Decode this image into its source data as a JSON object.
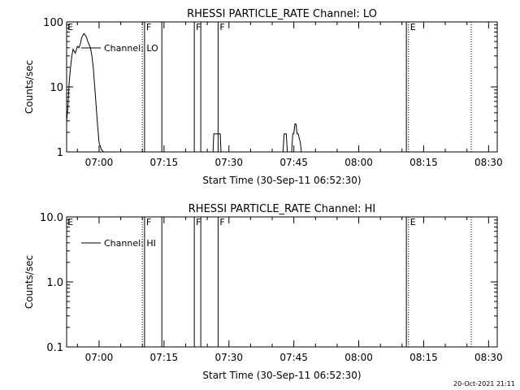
{
  "footer_stamp": "20-Oct-2021 21:11",
  "chart_data": [
    {
      "type": "line",
      "title": "RHESSI PARTICLE_RATE Channel: LO",
      "xlabel": "Start Time (30-Sep-11 06:52:30)",
      "ylabel": "Counts/sec",
      "yscale": "log",
      "ylim": [
        1,
        100
      ],
      "xlim": [
        "06:52:30",
        "08:32:00"
      ],
      "x_ticks": [
        "07:00",
        "07:15",
        "07:30",
        "07:45",
        "08:00",
        "08:15",
        "08:30"
      ],
      "y_ticks": [
        "1",
        "10",
        "100"
      ],
      "legend": [
        "Channel: LO"
      ],
      "legend_position": "top-left",
      "series": [
        {
          "name": "Channel: LO",
          "x": [
            "06:52:30",
            "06:52:48",
            "06:53:06",
            "06:53:24",
            "06:53:42",
            "06:54:00",
            "06:54:30",
            "06:55:00",
            "06:55:20",
            "06:55:40",
            "06:56:00",
            "06:56:30",
            "06:57:00",
            "06:57:30",
            "06:58:00",
            "06:58:20",
            "06:58:40",
            "06:59:00",
            "06:59:20",
            "06:59:40",
            "07:00:00",
            "07:00:30",
            "07:01:00",
            "07:26:20",
            "07:26:30",
            "07:27:00",
            "07:27:30",
            "07:28:00",
            "07:28:10",
            "07:42:30",
            "07:42:45",
            "07:43:00",
            "07:43:15",
            "07:43:30",
            "07:44:30",
            "07:44:45",
            "07:45:00",
            "07:45:15",
            "07:45:30",
            "07:45:45",
            "07:46:00",
            "07:46:30",
            "07:46:45"
          ],
          "y": [
            3,
            5,
            12,
            20,
            30,
            38,
            33,
            42,
            40,
            46,
            58,
            66,
            60,
            48,
            40,
            30,
            20,
            10,
            5,
            2.5,
            1.4,
            1.1,
            1,
            1,
            1.9,
            1.9,
            1.9,
            1.9,
            1,
            1,
            1.9,
            1.9,
            1.9,
            1,
            1,
            1.9,
            1.9,
            2.7,
            2.7,
            1.9,
            1.9,
            1.4,
            1
          ],
          "breaks_after": [
            22,
            28,
            33
          ]
        }
      ],
      "vlines": [
        {
          "time": "07:10:00",
          "label": "",
          "style": "dotted"
        },
        {
          "time": "07:10:30",
          "label": "F",
          "style": "solid"
        },
        {
          "time": "07:14:30",
          "label": "",
          "style": "solid"
        },
        {
          "time": "07:22:00",
          "label": "F",
          "style": "solid"
        },
        {
          "time": "07:23:30",
          "label": "",
          "style": "solid"
        },
        {
          "time": "07:27:30",
          "label": "F",
          "style": "solid"
        },
        {
          "time": "08:11:00",
          "label": "",
          "style": "solid"
        },
        {
          "time": "08:11:30",
          "label": "E",
          "style": "dotted"
        },
        {
          "time": "08:26:00",
          "label": "",
          "style": "dotted"
        }
      ],
      "corner_labels": [
        {
          "time": "06:52:30",
          "label": "E"
        }
      ]
    },
    {
      "type": "line",
      "title": "RHESSI PARTICLE_RATE Channel: HI",
      "xlabel": "Start Time (30-Sep-11 06:52:30)",
      "ylabel": "Counts/sec",
      "yscale": "log",
      "ylim": [
        0.1,
        10
      ],
      "xlim": [
        "06:52:30",
        "08:32:00"
      ],
      "x_ticks": [
        "07:00",
        "07:15",
        "07:30",
        "07:45",
        "08:00",
        "08:15",
        "08:30"
      ],
      "y_ticks": [
        "0.1",
        "1.0",
        "10.0"
      ],
      "legend": [
        "Channel: HI"
      ],
      "legend_position": "top-left",
      "series": [
        {
          "name": "Channel: HI",
          "x": [],
          "y": []
        }
      ],
      "vlines": [
        {
          "time": "07:10:00",
          "label": "",
          "style": "dotted"
        },
        {
          "time": "07:10:30",
          "label": "F",
          "style": "solid"
        },
        {
          "time": "07:14:30",
          "label": "",
          "style": "solid"
        },
        {
          "time": "07:22:00",
          "label": "F",
          "style": "solid"
        },
        {
          "time": "07:23:30",
          "label": "",
          "style": "solid"
        },
        {
          "time": "07:27:30",
          "label": "F",
          "style": "solid"
        },
        {
          "time": "08:11:00",
          "label": "",
          "style": "solid"
        },
        {
          "time": "08:11:30",
          "label": "E",
          "style": "dotted"
        },
        {
          "time": "08:26:00",
          "label": "",
          "style": "dotted"
        }
      ],
      "corner_labels": [
        {
          "time": "06:52:30",
          "label": "E"
        }
      ]
    }
  ]
}
